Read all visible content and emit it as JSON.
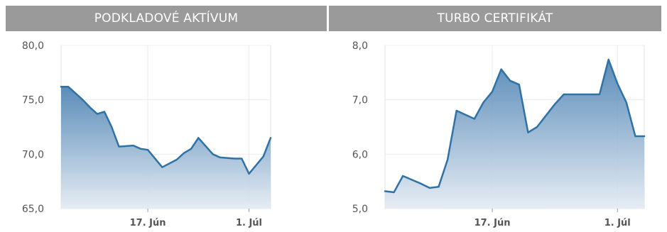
{
  "chart_data": [
    {
      "type": "area",
      "title": "PODKLADOVÉ AKTÍVUM",
      "ylim": [
        65,
        80
      ],
      "y_ticks": [
        "65,0",
        "70,0",
        "75,0",
        "80,0"
      ],
      "y_tick_values": [
        65,
        70,
        75,
        80
      ],
      "x_ticks": [
        "17. Jún",
        "1. Júl"
      ],
      "x_tick_values": [
        12,
        26
      ],
      "grid": true,
      "color": "#2f72a6",
      "x": [
        0,
        1,
        3,
        4,
        5,
        6,
        7,
        8,
        10,
        11,
        12,
        14,
        16,
        17,
        18,
        19,
        21,
        22,
        24,
        25,
        26,
        27,
        28,
        29
      ],
      "values": [
        76.2,
        76.2,
        75.0,
        74.3,
        73.7,
        73.9,
        72.5,
        70.7,
        70.8,
        70.5,
        70.4,
        68.8,
        69.5,
        70.1,
        70.5,
        71.5,
        70.0,
        69.7,
        69.6,
        69.6,
        68.2,
        69.0,
        69.8,
        71.5
      ]
    },
    {
      "type": "area",
      "title": "TURBO CERTIFIKÁT",
      "ylim": [
        5,
        8
      ],
      "y_ticks": [
        "5,0",
        "6,0",
        "7,0",
        "8,0"
      ],
      "y_tick_values": [
        5,
        6,
        7,
        8
      ],
      "x_ticks": [
        "17. Jún",
        "1. Júl"
      ],
      "x_tick_values": [
        12,
        26
      ],
      "grid": true,
      "color": "#2f72a6",
      "x": [
        0,
        1,
        2,
        3,
        4,
        5,
        6,
        7,
        8,
        10,
        11,
        12,
        13,
        14,
        15,
        16,
        17,
        19,
        20,
        21,
        22,
        24,
        25,
        26,
        27,
        28,
        29
      ],
      "values": [
        5.32,
        5.3,
        5.6,
        5.53,
        5.46,
        5.38,
        5.4,
        5.9,
        6.8,
        6.65,
        6.95,
        7.15,
        7.56,
        7.35,
        7.28,
        6.4,
        6.5,
        6.92,
        7.1,
        7.1,
        7.1,
        7.1,
        7.74,
        7.3,
        6.95,
        6.33,
        6.33
      ]
    }
  ]
}
